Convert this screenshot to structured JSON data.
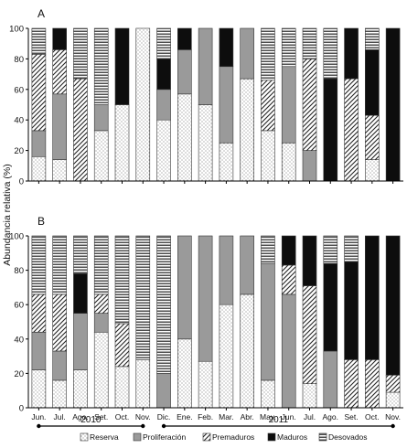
{
  "ylabel": "Abundancia relativa (%)",
  "legend": [
    {
      "name": "Reserva",
      "pattern": "pat-dots"
    },
    {
      "name": "Proliferación",
      "pattern": "pat-gray"
    },
    {
      "name": "Premaduros",
      "pattern": "pat-diag"
    },
    {
      "name": "Maduros",
      "pattern": "pat-black"
    },
    {
      "name": "Desovados",
      "pattern": "pat-horiz"
    }
  ],
  "years": [
    {
      "label": "2010",
      "panel": 1,
      "from": 0,
      "to": 5
    },
    {
      "label": "2011",
      "panel": 1,
      "from": 6,
      "to": 17
    }
  ],
  "colors": {
    "proliferacion": "#9a9a9a",
    "maduros": "#0d0d0d",
    "stroke": "#333333"
  },
  "chart_data": [
    {
      "type": "bar",
      "stacked": true,
      "panel_label": "A",
      "categories": [
        "",
        "",
        "",
        "",
        "",
        "",
        "",
        "",
        "",
        "",
        "",
        "",
        "",
        "",
        "",
        "",
        "",
        ""
      ],
      "ylim": [
        0,
        100
      ],
      "yticks": [
        0,
        20,
        40,
        60,
        80,
        100
      ],
      "series": [
        {
          "name": "Reserva",
          "values": [
            16,
            14,
            0,
            33,
            50,
            100,
            40,
            57,
            50,
            25,
            67,
            33,
            25,
            0,
            0,
            0,
            14,
            0
          ]
        },
        {
          "name": "Proliferación",
          "values": [
            17,
            43,
            0,
            17,
            0,
            0,
            20,
            29,
            50,
            50,
            33,
            0,
            50,
            20,
            0,
            0,
            0,
            0
          ]
        },
        {
          "name": "Premaduros",
          "values": [
            50,
            29,
            67,
            0,
            0,
            0,
            0,
            0,
            0,
            0,
            0,
            33,
            0,
            60,
            0,
            67,
            29,
            0
          ]
        },
        {
          "name": "Maduros",
          "values": [
            0,
            14,
            0,
            0,
            50,
            0,
            20,
            14,
            0,
            25,
            0,
            0,
            0,
            0,
            67,
            33,
            43,
            100
          ]
        },
        {
          "name": "Desovados",
          "values": [
            17,
            0,
            33,
            50,
            0,
            0,
            20,
            0,
            0,
            0,
            0,
            34,
            25,
            20,
            33,
            0,
            14,
            0
          ]
        }
      ]
    },
    {
      "type": "bar",
      "stacked": true,
      "panel_label": "B",
      "categories": [
        "Jun.",
        "Jul.",
        "Ago.",
        "Set.",
        "Oct.",
        "Nov.",
        "Dic.",
        "Ene.",
        "Feb.",
        "Mar.",
        "Abr.",
        "May.",
        "Jun.",
        "Jul.",
        "Ago.",
        "Set.",
        "Oct.",
        "Nov."
      ],
      "ylim": [
        0,
        100
      ],
      "yticks": [
        0,
        20,
        40,
        60,
        80,
        100
      ],
      "series": [
        {
          "name": "Reserva",
          "values": [
            22,
            16,
            22,
            44,
            24,
            28,
            0,
            40,
            27,
            60,
            66,
            16,
            0,
            14,
            0,
            0,
            0,
            9
          ]
        },
        {
          "name": "Proliferación",
          "values": [
            22,
            17,
            33,
            11,
            0,
            0,
            20,
            60,
            73,
            40,
            34,
            68,
            66,
            0,
            33,
            0,
            0,
            0
          ]
        },
        {
          "name": "Premaduros",
          "values": [
            22,
            33,
            0,
            11,
            25,
            0,
            0,
            0,
            0,
            0,
            0,
            0,
            17,
            57,
            0,
            28,
            28,
            10
          ]
        },
        {
          "name": "Maduros",
          "values": [
            0,
            0,
            23,
            0,
            0,
            0,
            0,
            0,
            0,
            0,
            0,
            0,
            17,
            29,
            51,
            57,
            72,
            81
          ]
        },
        {
          "name": "Desovados",
          "values": [
            34,
            34,
            22,
            34,
            51,
            72,
            80,
            0,
            0,
            0,
            0,
            16,
            0,
            0,
            16,
            15,
            0,
            0
          ]
        }
      ]
    }
  ]
}
